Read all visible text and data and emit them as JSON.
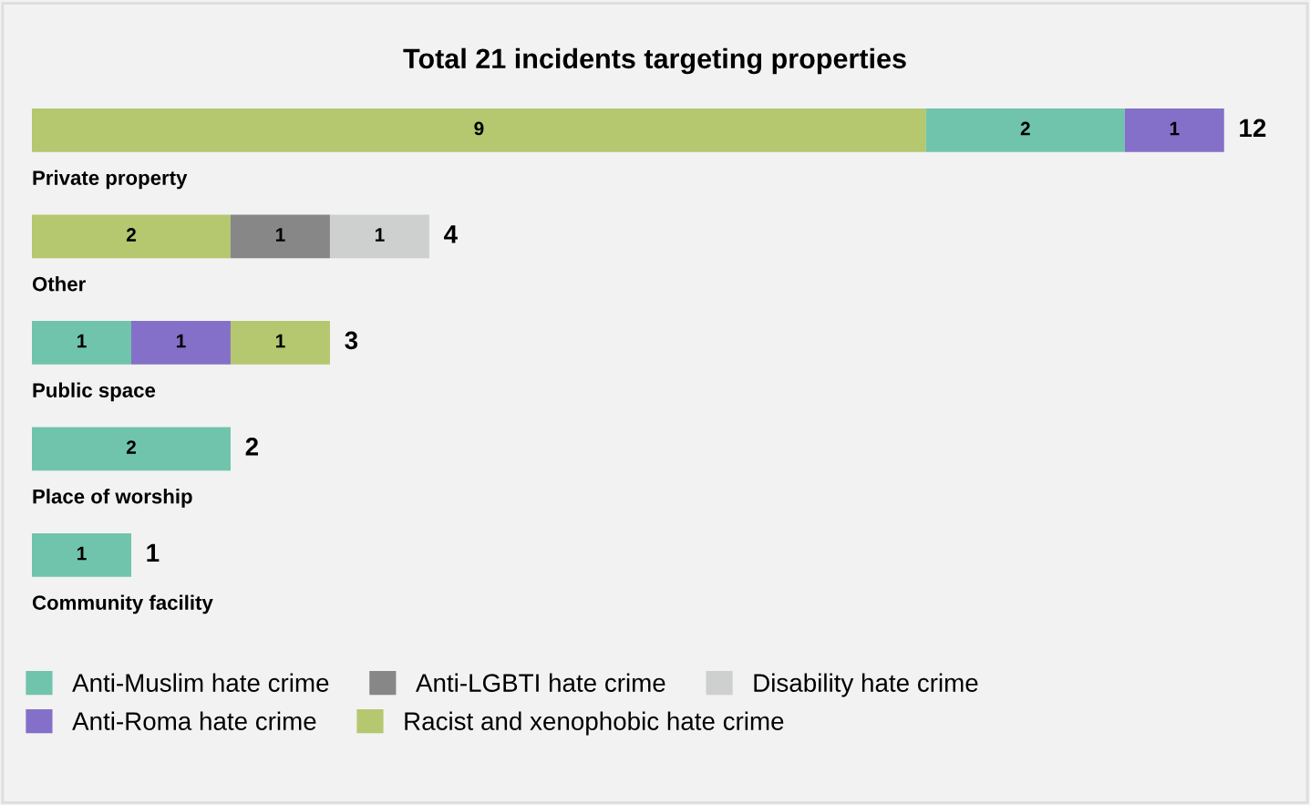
{
  "chart_data": {
    "type": "bar",
    "orientation": "horizontal",
    "stacked": true,
    "title": "Total 21 incidents targeting properties",
    "categories": [
      "Private property",
      "Other",
      "Public space",
      "Place of worship",
      "Community facility"
    ],
    "series": [
      {
        "color": "#b5c76f",
        "values": [
          9,
          2,
          null,
          null,
          null
        ]
      },
      {
        "name": "Anti-Muslim hate crime",
        "color": "#70c4ab",
        "values": [
          2,
          null,
          1,
          2,
          1
        ]
      },
      {
        "name": "Anti-LGBTI hate crime",
        "color": "#878787",
        "values": [
          null,
          1,
          null,
          null,
          null
        ]
      },
      {
        "name": "Disability hate crime",
        "color": "#cdd0cf",
        "values": [
          null,
          1,
          null,
          null,
          null
        ]
      },
      {
        "name": "Anti-Roma hate crime",
        "color": "#8470c8",
        "values": [
          1,
          null,
          1,
          null,
          null
        ]
      },
      {
        "name": "Racist and xenophobic hate crime",
        "color": "#b5c76f",
        "values": [
          null,
          null,
          1,
          null,
          null
        ]
      }
    ],
    "data_labels": true,
    "totals": [
      "12",
      "4",
      "3",
      "2",
      "1"
    ],
    "legend": "bottom"
  }
}
